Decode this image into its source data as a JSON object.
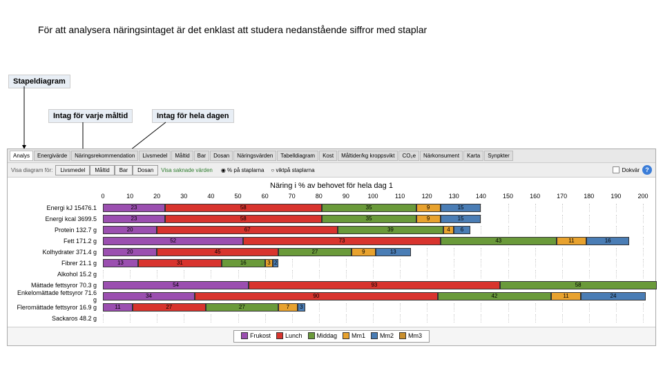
{
  "instruction": "För att analysera näringsintaget är det enklast att studera nedanstående siffror med staplar",
  "labels": {
    "stapel": "Stapeldiagram",
    "varje": "Intag för varje måltid",
    "hela": "Intag för hela dagen"
  },
  "tabs": [
    "Analys",
    "Energivärde",
    "Näringsrekommendation",
    "Livsmedel",
    "Måltid",
    "Bar",
    "Dosan",
    "Näringsvärden",
    "Tabelldiagram",
    "Kost",
    "Måltider/kg kroppsvikt",
    "CO₂e",
    "Närkonsument",
    "Karta",
    "Synpkter"
  ],
  "subToolbar": {
    "buttons": [
      "Livsmedel",
      "Måltid",
      "Bar",
      "Dosan"
    ],
    "greenLink": "Visa saknade värden",
    "radio1": "% på staplarna",
    "radio2": "viktpå staplarna",
    "checkbox": "Dokvär"
  },
  "chart": {
    "title": "Näring i % av behovet för hela dag 1",
    "xmax": 200,
    "xtick": 10,
    "colors": {
      "Frukost": "#9b4fb0",
      "Lunch": "#d8342e",
      "Middag": "#6a9a3a",
      "Mm1": "#e8a22e",
      "Mm2": "#4a7db5",
      "Mm3": "#c98f2e"
    },
    "rows": [
      {
        "label": "Energi kJ 15476.1",
        "segs": [
          [
            "Frukost",
            23
          ],
          [
            "Lunch",
            58
          ],
          [
            "Middag",
            35
          ],
          [
            "Mm1",
            9
          ],
          [
            "Mm2",
            15
          ]
        ]
      },
      {
        "label": "Energi kcal 3699.5",
        "segs": [
          [
            "Frukost",
            23
          ],
          [
            "Lunch",
            58
          ],
          [
            "Middag",
            35
          ],
          [
            "Mm1",
            9
          ],
          [
            "Mm2",
            15
          ]
        ]
      },
      {
        "label": "Protein 132.7 g",
        "segs": [
          [
            "Frukost",
            20
          ],
          [
            "Lunch",
            67
          ],
          [
            "Middag",
            39
          ],
          [
            "Mm1",
            4
          ],
          [
            "Mm2",
            6
          ]
        ]
      },
      {
        "label": "Fett 171.2 g",
        "segs": [
          [
            "Frukost",
            52
          ],
          [
            "Lunch",
            73
          ],
          [
            "Middag",
            43
          ],
          [
            "Mm1",
            11
          ],
          [
            "Mm2",
            16
          ]
        ]
      },
      {
        "label": "Kolhydrater 371.4 g",
        "segs": [
          [
            "Frukost",
            20
          ],
          [
            "Lunch",
            45
          ],
          [
            "Middag",
            27
          ],
          [
            "Mm1",
            9
          ],
          [
            "Mm2",
            13
          ]
        ]
      },
      {
        "label": "Fibrer 21.1 g",
        "segs": [
          [
            "Frukost",
            13
          ],
          [
            "Lunch",
            31
          ],
          [
            "Middag",
            16
          ],
          [
            "Mm1",
            3
          ],
          [
            "Mm2",
            2
          ]
        ]
      },
      {
        "label": "Alkohol 15.2 g",
        "segs": []
      },
      {
        "label": "Mättade fettsyror 70.3 g",
        "segs": [
          [
            "Frukost",
            54
          ],
          [
            "Lunch",
            93
          ],
          [
            "Middag",
            58
          ]
        ]
      },
      {
        "label": "Enkelomättade fettsyror 71.6 g",
        "segs": [
          [
            "Frukost",
            34
          ],
          [
            "Lunch",
            90
          ],
          [
            "Middag",
            42
          ],
          [
            "Mm1",
            11
          ],
          [
            "Mm2",
            24
          ]
        ]
      },
      {
        "label": "Fleromättade fettsyror 16.9 g",
        "segs": [
          [
            "Frukost",
            11
          ],
          [
            "Lunch",
            27
          ],
          [
            "Middag",
            27
          ],
          [
            "Mm1",
            7
          ],
          [
            "Mm2",
            3
          ]
        ]
      },
      {
        "label": "Sackaros 48.2 g",
        "segs": []
      }
    ],
    "legend": [
      "Frukost",
      "Lunch",
      "Middag",
      "Mm1",
      "Mm2",
      "Mm3"
    ]
  }
}
